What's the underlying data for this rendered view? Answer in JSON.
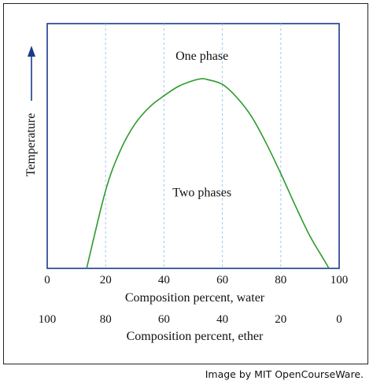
{
  "chart_data": {
    "type": "line",
    "ylabel": "Temperature",
    "xaxis_primary": {
      "label": "Composition percent, water",
      "ticks": [
        "0",
        "20",
        "40",
        "60",
        "80",
        "100"
      ],
      "range": [
        0,
        100
      ]
    },
    "xaxis_secondary": {
      "label": "Composition percent, ether",
      "ticks": [
        "100",
        "80",
        "60",
        "40",
        "20",
        "0"
      ],
      "range": [
        100,
        0
      ]
    },
    "grid_x": [
      20,
      40,
      60,
      80
    ],
    "series": [
      {
        "color": "#2e9a2e",
        "x": [
          13.5,
          20,
          25,
          30,
          35,
          40,
          45,
          50,
          53,
          55,
          60,
          65,
          70,
          75,
          80,
          85,
          90,
          95,
          96.5
        ],
        "y": [
          0,
          0.41,
          0.62,
          0.76,
          0.85,
          0.91,
          0.96,
          0.99,
          1.0,
          0.995,
          0.97,
          0.9,
          0.8,
          0.66,
          0.5,
          0.33,
          0.17,
          0.04,
          0
        ]
      }
    ],
    "annotations": [
      {
        "text": "One phase",
        "x": 53,
        "y": 1.12
      },
      {
        "text": "Two phases",
        "x": 53,
        "y": 0.4
      }
    ]
  },
  "credit": "Image by MIT OpenCourseWare."
}
